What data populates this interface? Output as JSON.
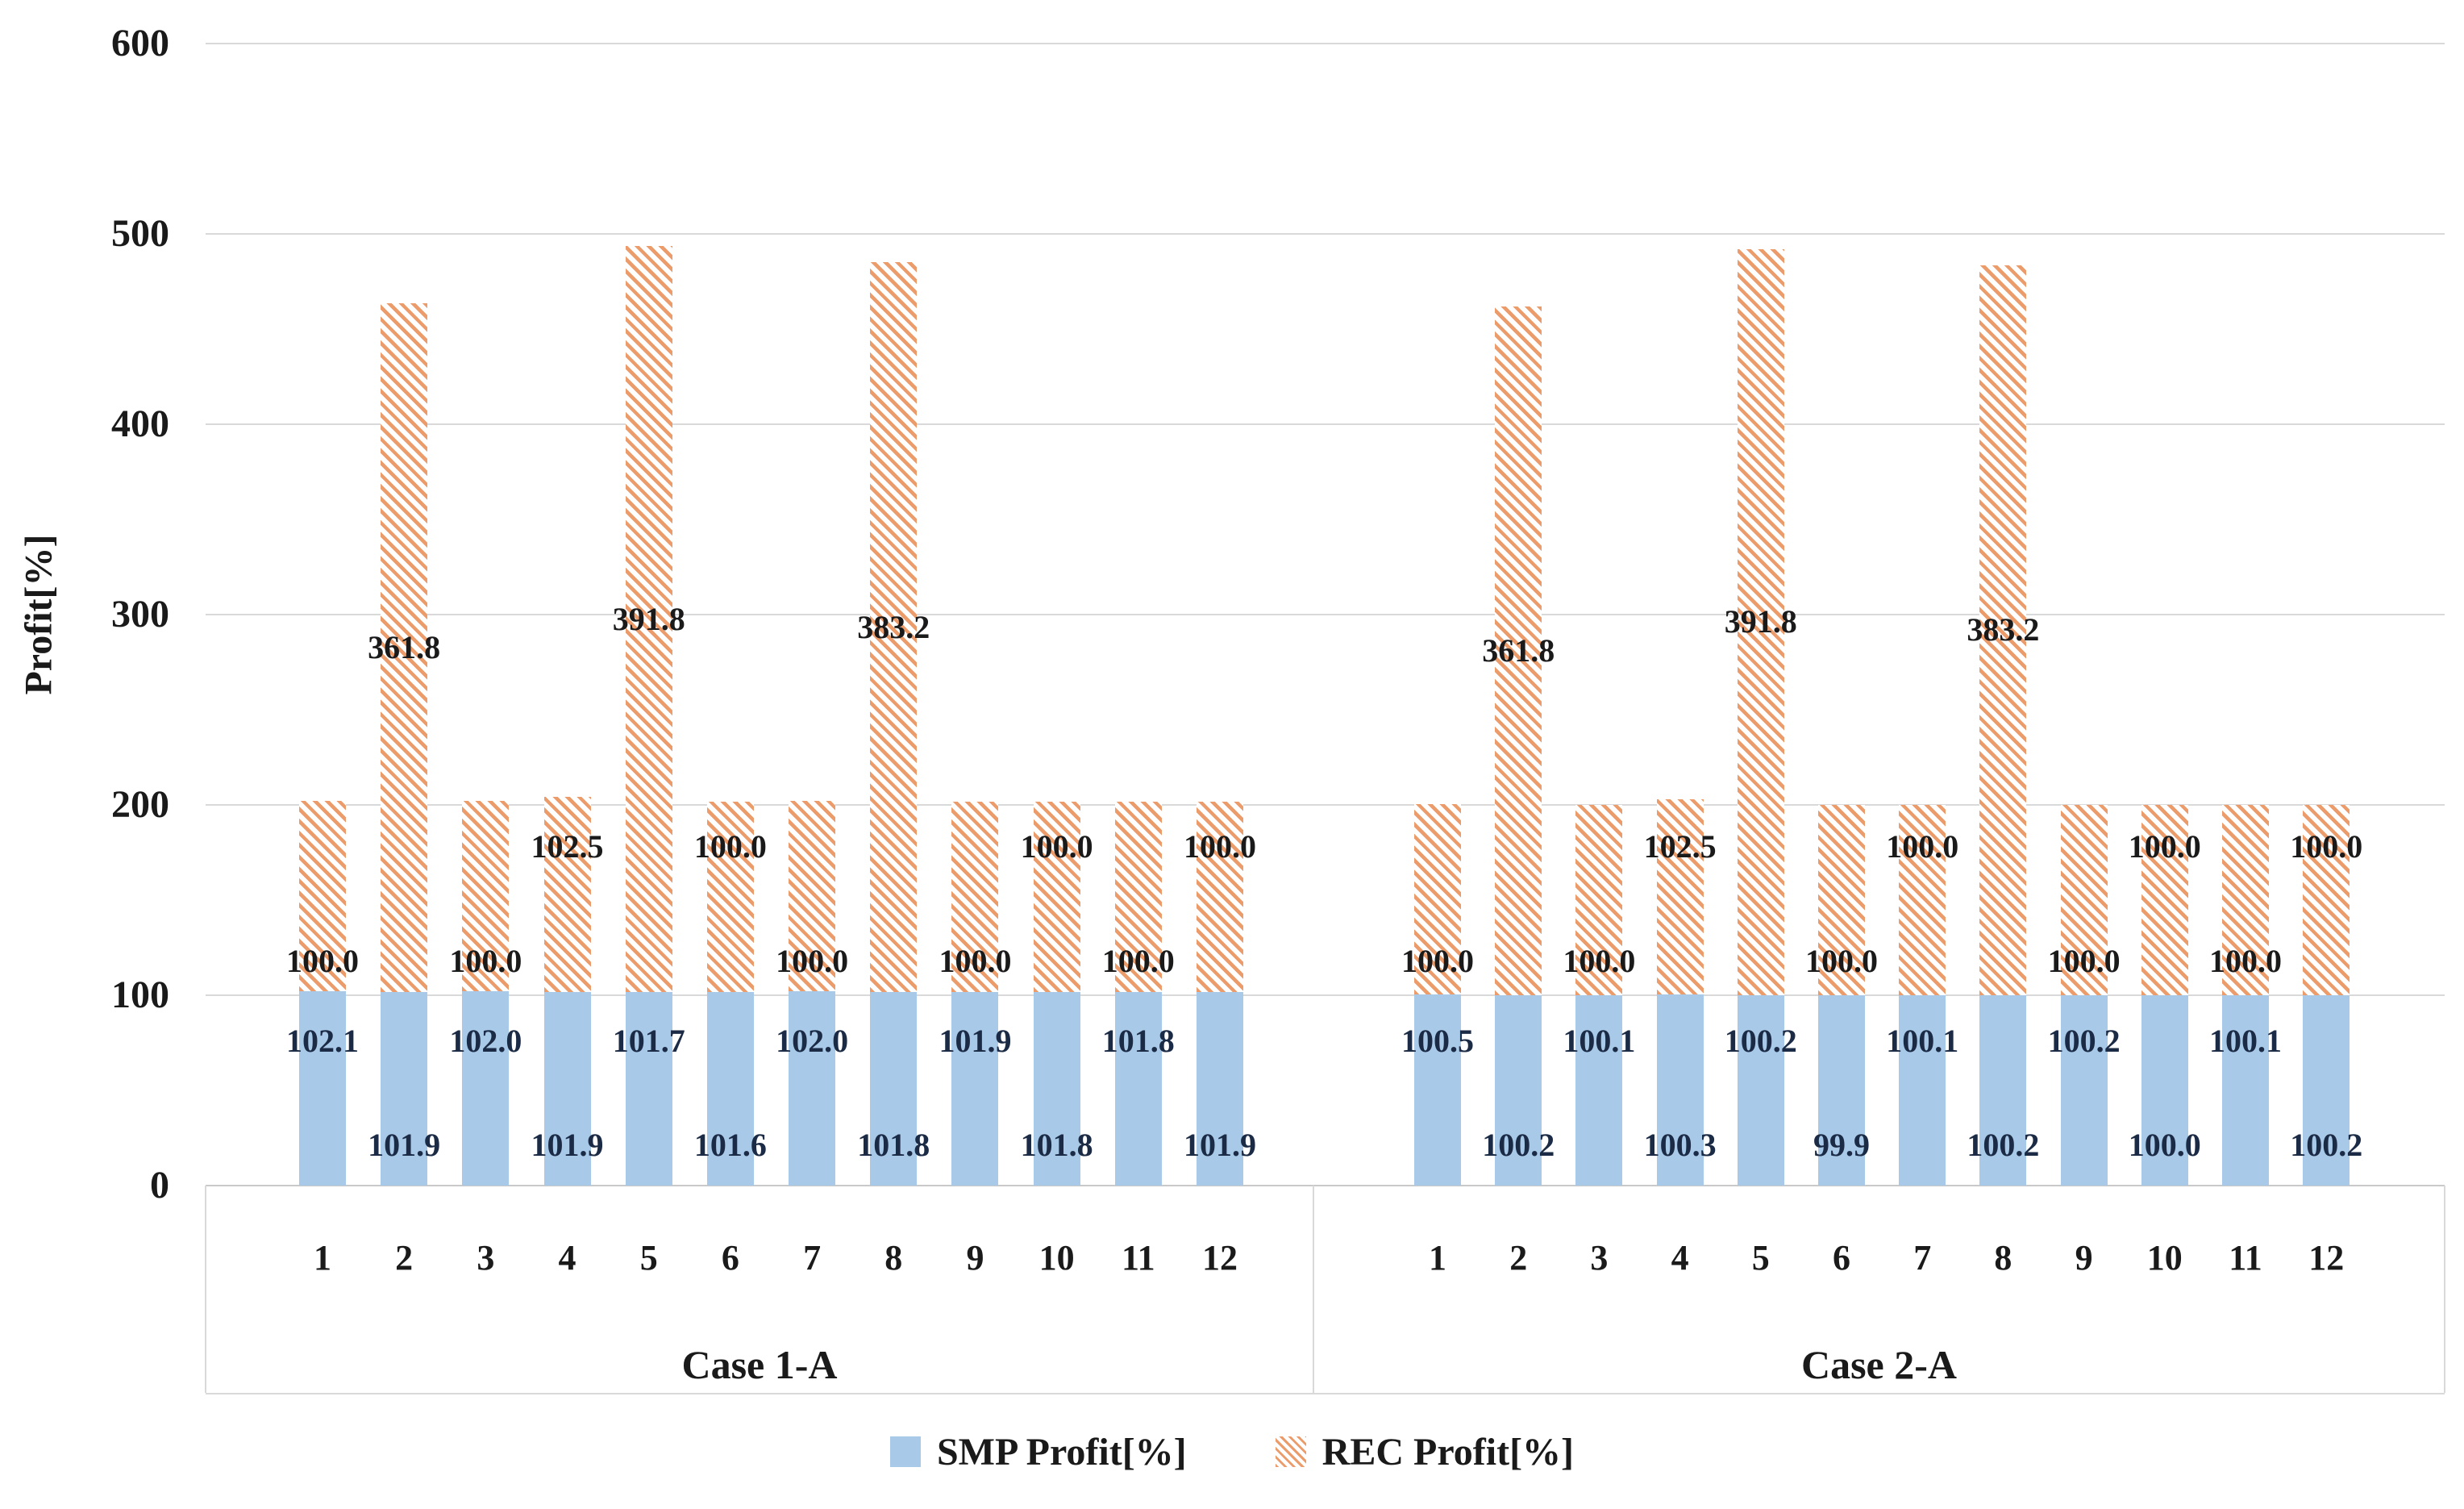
{
  "chart_data": {
    "type": "bar",
    "stacked": true,
    "title": "",
    "ylabel": "Profit[%]",
    "xlabel": "",
    "ylim": [
      0,
      600
    ],
    "yticks": [
      0,
      100,
      200,
      300,
      400,
      500,
      600
    ],
    "grid": true,
    "legend_position": "bottom",
    "legend": [
      "SMP Profit[%]",
      "REC Profit[%]"
    ],
    "categories": [
      "1",
      "2",
      "3",
      "4",
      "5",
      "6",
      "7",
      "8",
      "9",
      "10",
      "11",
      "12"
    ],
    "groups": [
      {
        "label": "Case 1-A",
        "series": [
          {
            "name": "SMP Profit[%]",
            "values": [
              102.1,
              101.9,
              102.0,
              101.9,
              101.7,
              101.6,
              102.0,
              101.8,
              101.9,
              101.8,
              101.8,
              101.9
            ]
          },
          {
            "name": "REC Profit[%]",
            "values": [
              100.0,
              361.8,
              100.0,
              102.5,
              391.8,
              100.0,
              100.0,
              383.2,
              100.0,
              100.0,
              100.0,
              100.0
            ]
          }
        ],
        "rec_label_pos": [
          "low",
          "center",
          "low",
          "high",
          "center",
          "high",
          "low",
          "center",
          "low",
          "high",
          "low",
          "high"
        ]
      },
      {
        "label": "Case 2-A",
        "series": [
          {
            "name": "SMP Profit[%]",
            "values": [
              100.5,
              100.2,
              100.1,
              100.3,
              100.2,
              99.9,
              100.1,
              100.2,
              100.2,
              100.0,
              100.1,
              100.2
            ]
          },
          {
            "name": "REC Profit[%]",
            "values": [
              100.0,
              361.8,
              100.0,
              102.5,
              391.8,
              100.0,
              100.0,
              383.2,
              100.0,
              100.0,
              100.0,
              100.0
            ]
          }
        ],
        "rec_label_pos": [
          "low",
          "center",
          "low",
          "high",
          "center",
          "low",
          "high",
          "center",
          "low",
          "high",
          "low",
          "high"
        ]
      }
    ],
    "colors": {
      "smp_fill": "#A9C9E9",
      "rec_stripe": "#EB9C6A",
      "rec_bg": "#FFFFFF",
      "gridline": "#D9D9D9",
      "axis_box": "#C9C9C9",
      "smp_label_text": "#1B2B45",
      "rec_label_text": "#1A1A1A",
      "text": "#1A1A1A"
    }
  }
}
